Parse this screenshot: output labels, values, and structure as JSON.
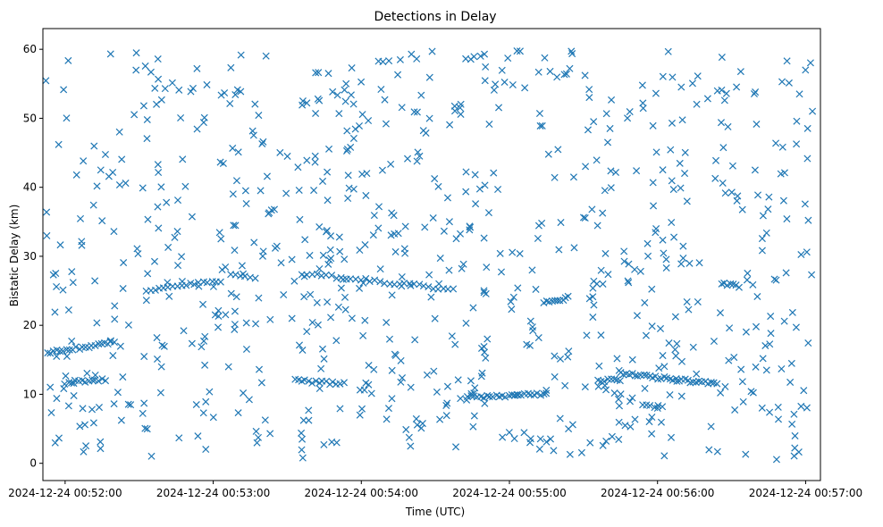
{
  "chart_data": {
    "type": "scatter",
    "title": "Detections in Delay",
    "xlabel": "Time (UTC)",
    "ylabel": "Bistatic Delay (km)",
    "marker": "x",
    "color": "#1f77b4",
    "xlim": [
      51.85,
      57.1
    ],
    "ylim": [
      -2.5,
      63
    ],
    "x_ticks": [
      52,
      53,
      54,
      55,
      56,
      57
    ],
    "x_tick_labels": [
      "2024-12-24 00:52:00",
      "2024-12-24 00:53:00",
      "2024-12-24 00:54:00",
      "2024-12-24 00:55:00",
      "2024-12-24 00:56:00",
      "2024-12-24 00:57:00"
    ],
    "y_ticks": [
      0,
      10,
      20,
      30,
      40,
      50,
      60
    ],
    "y_tick_labels": [
      "0",
      "10",
      "20",
      "30",
      "40",
      "50",
      "60"
    ],
    "x_units": "minutes after 00:00 UTC on 2024-12-24",
    "series": [
      {
        "name": "detections",
        "tracks": [
          {
            "x_start": 51.88,
            "x_end": 52.33,
            "y_start": 16.0,
            "y_end": 17.5,
            "count": 22
          },
          {
            "x_start": 52.0,
            "x_end": 52.27,
            "y_start": 11.7,
            "y_end": 12.1,
            "count": 13
          },
          {
            "x_start": 52.55,
            "x_end": 53.05,
            "y_start": 25.0,
            "y_end": 26.5,
            "count": 18
          },
          {
            "x_start": 53.12,
            "x_end": 53.28,
            "y_start": 27.2,
            "y_end": 27.0,
            "count": 6
          },
          {
            "x_start": 53.55,
            "x_end": 53.88,
            "y_start": 12.0,
            "y_end": 11.5,
            "count": 15
          },
          {
            "x_start": 53.6,
            "x_end": 54.62,
            "y_start": 27.5,
            "y_end": 25.2,
            "count": 32
          },
          {
            "x_start": 54.72,
            "x_end": 55.25,
            "y_start": 9.6,
            "y_end": 10.0,
            "count": 26
          },
          {
            "x_start": 55.23,
            "x_end": 55.4,
            "y_start": 23.2,
            "y_end": 24.0,
            "count": 10
          },
          {
            "x_start": 55.6,
            "x_end": 55.75,
            "y_start": 12.0,
            "y_end": 12.0,
            "count": 8
          },
          {
            "x_start": 55.75,
            "x_end": 56.4,
            "y_start": 13.0,
            "y_end": 11.5,
            "count": 34
          },
          {
            "x_start": 55.9,
            "x_end": 56.03,
            "y_start": 8.3,
            "y_end": 8.3,
            "count": 6
          },
          {
            "x_start": 56.43,
            "x_end": 56.53,
            "y_start": 26.0,
            "y_end": 26.0,
            "count": 6
          }
        ],
        "noise": {
          "x_range": [
            51.87,
            57.05
          ],
          "y_range": [
            0.5,
            59.8
          ],
          "count": 800,
          "distribution": "uniform"
        }
      }
    ]
  }
}
